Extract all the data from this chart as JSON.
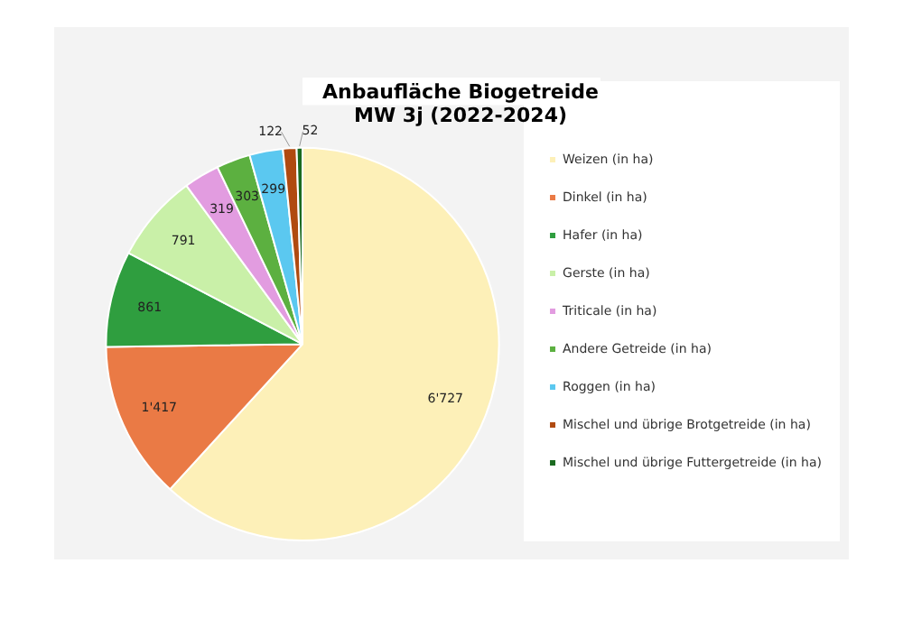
{
  "chart_data": {
    "type": "pie",
    "title": "Anbaufläche Biogetreide",
    "subtitle": "MW 3j (2022-2024)",
    "categories": [
      "Weizen (in ha)",
      "Dinkel (in ha)",
      "Hafer (in ha)",
      "Gerste (in ha)",
      "Triticale (in ha)",
      "Andere Getreide (in ha)",
      "Roggen (in ha)",
      "Mischel und übrige Brotgetreide (in ha)",
      "Mischel und übrige Futtergetreide (in ha)"
    ],
    "values": [
      6727,
      1417,
      861,
      791,
      319,
      303,
      299,
      122,
      52
    ],
    "value_labels": [
      "6'727",
      "1'417",
      "861",
      "791",
      "319",
      "303",
      "299",
      "122",
      "52"
    ],
    "colors": [
      "#fdf0b8",
      "#ea7a45",
      "#2f9e3f",
      "#c9f0a8",
      "#e29ce0",
      "#5cb040",
      "#5bc8f0",
      "#b04a10",
      "#1a6a20"
    ],
    "legend": "right"
  }
}
